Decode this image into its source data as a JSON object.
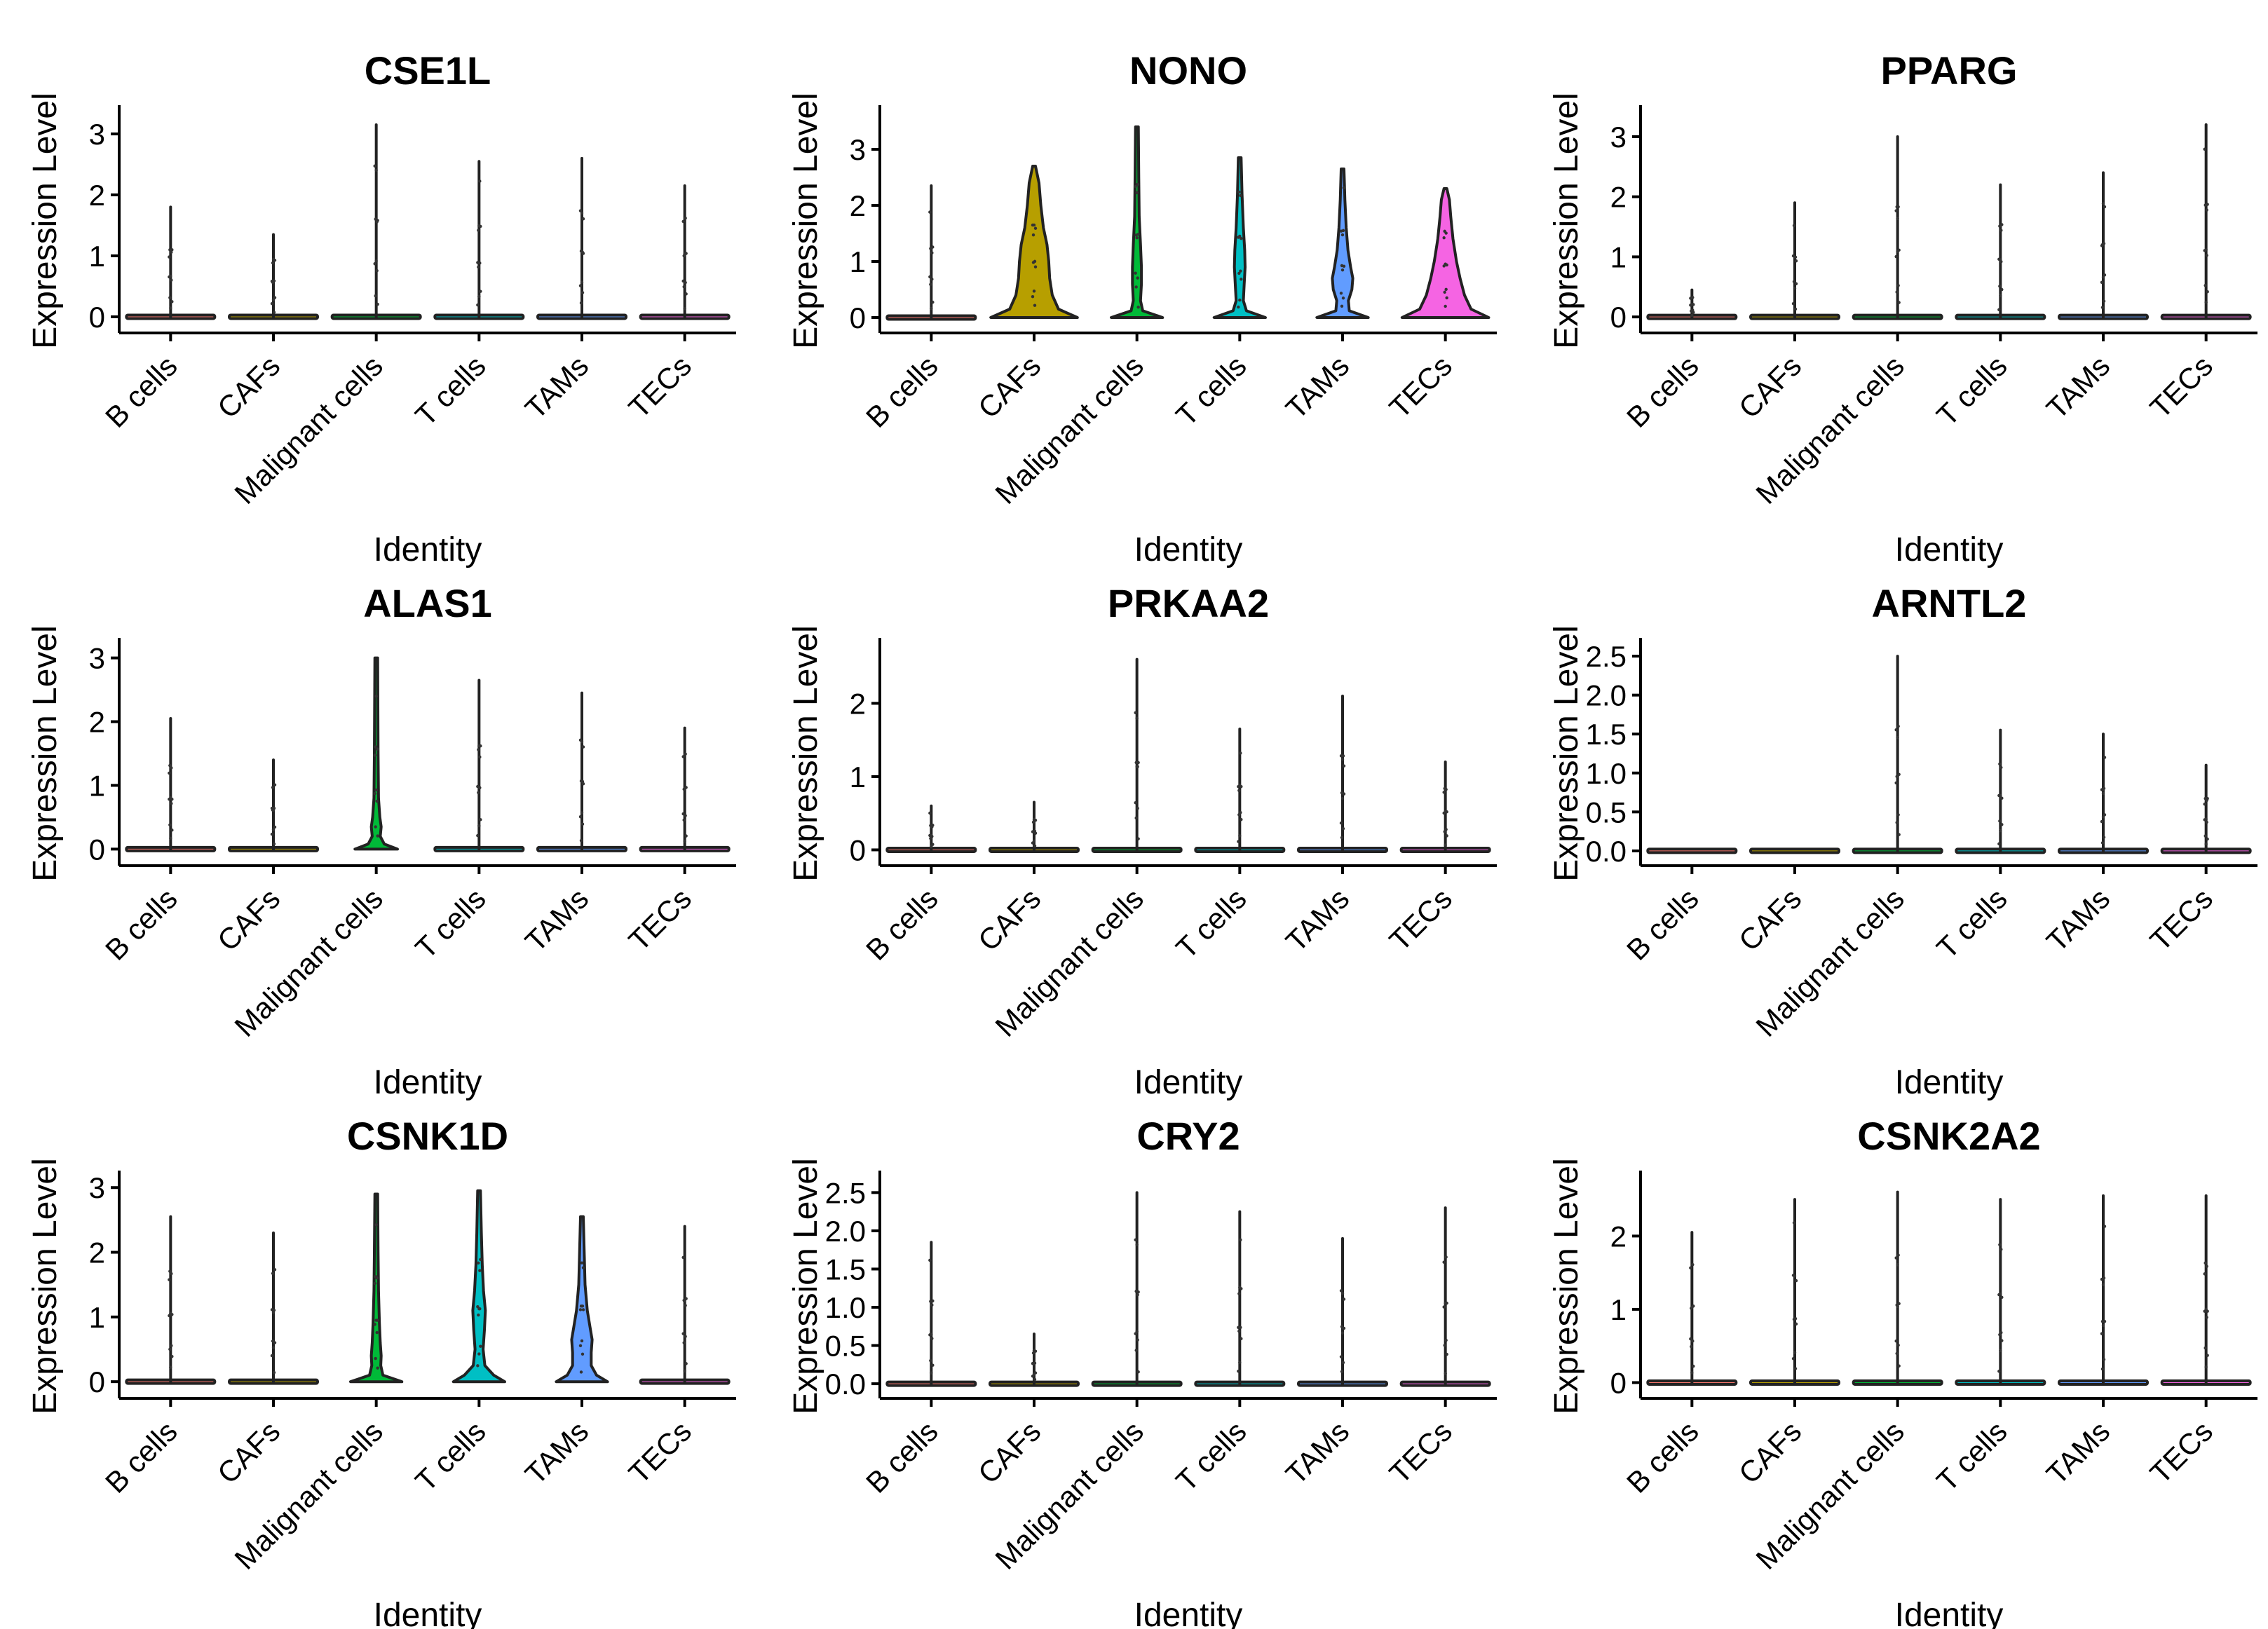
{
  "chart_data": {
    "type": "violin",
    "x_label": "Identity",
    "y_label": "Expression Level",
    "categories": [
      "B cells",
      "CAFs",
      "Malignant cells",
      "T cells",
      "TAMs",
      "TECs"
    ],
    "colors": {
      "B cells": "#F8766D",
      "CAFs": "#B79F00",
      "Malignant cells": "#00BA38",
      "T cells": "#00BFC4",
      "TAMs": "#619CFF",
      "TECs": "#F564E3"
    },
    "panels": [
      {
        "gene": "CSE1L",
        "ylim": [
          -0.15,
          3.3
        ],
        "yticks": [
          "0",
          "1",
          "2",
          "3"
        ],
        "max_values": [
          1.8,
          1.35,
          3.15,
          2.55,
          2.6,
          2.15
        ],
        "shapes": [
          [],
          [],
          [],
          [],
          [],
          []
        ]
      },
      {
        "gene": "NONO",
        "ylim": [
          -0.15,
          3.6
        ],
        "yticks": [
          "0",
          "1",
          "2",
          "3"
        ],
        "max_values": [
          2.35,
          2.7,
          3.4,
          2.85,
          2.65,
          2.3
        ],
        "shapes": [
          [],
          [
            [
              0,
              0.95
            ],
            [
              0.15,
              0.52
            ],
            [
              0.4,
              0.38
            ],
            [
              0.7,
              0.32
            ],
            [
              1.0,
              0.3
            ],
            [
              1.3,
              0.26
            ],
            [
              1.6,
              0.18
            ],
            [
              2.0,
              0.12
            ],
            [
              2.4,
              0.08
            ],
            [
              2.7,
              0
            ]
          ],
          [
            [
              0,
              0.55
            ],
            [
              0.12,
              0.1
            ],
            [
              0.3,
              0.05
            ],
            [
              0.6,
              0.07
            ],
            [
              0.9,
              0.07
            ],
            [
              1.3,
              0.05
            ],
            [
              1.8,
              0.02
            ],
            [
              2.5,
              0.01
            ],
            [
              3.4,
              0
            ]
          ],
          [
            [
              0,
              0.55
            ],
            [
              0.12,
              0.12
            ],
            [
              0.3,
              0.05
            ],
            [
              0.6,
              0.07
            ],
            [
              0.9,
              0.09
            ],
            [
              1.2,
              0.08
            ],
            [
              1.6,
              0.05
            ],
            [
              2.2,
              0.02
            ],
            [
              2.85,
              0
            ]
          ],
          [
            [
              0,
              0.55
            ],
            [
              0.12,
              0.12
            ],
            [
              0.3,
              0.1
            ],
            [
              0.5,
              0.18
            ],
            [
              0.7,
              0.2
            ],
            [
              0.9,
              0.15
            ],
            [
              1.2,
              0.09
            ],
            [
              1.6,
              0.05
            ],
            [
              2.1,
              0.02
            ],
            [
              2.65,
              0
            ]
          ],
          [
            [
              0,
              0.95
            ],
            [
              0.15,
              0.55
            ],
            [
              0.4,
              0.4
            ],
            [
              0.7,
              0.3
            ],
            [
              1.0,
              0.22
            ],
            [
              1.4,
              0.14
            ],
            [
              1.8,
              0.09
            ],
            [
              2.1,
              0.06
            ],
            [
              2.3,
              0
            ]
          ]
        ]
      },
      {
        "gene": "PPARG",
        "ylim": [
          -0.15,
          3.35
        ],
        "yticks": [
          "0",
          "1",
          "2",
          "3"
        ],
        "max_values": [
          0.45,
          1.9,
          3.0,
          2.2,
          2.4,
          3.2
        ],
        "shapes": [
          [],
          [],
          [],
          [],
          [],
          []
        ]
      },
      {
        "gene": "ALAS1",
        "ylim": [
          -0.15,
          3.15
        ],
        "yticks": [
          "0",
          "1",
          "2",
          "3"
        ],
        "max_values": [
          2.05,
          1.4,
          3.0,
          2.65,
          2.45,
          1.9
        ],
        "shapes": [
          [],
          [],
          [
            [
              0,
              0.45
            ],
            [
              0.08,
              0.15
            ],
            [
              0.2,
              0.06
            ],
            [
              0.35,
              0.08
            ],
            [
              0.5,
              0.05
            ],
            [
              0.8,
              0.02
            ],
            [
              1.5,
              0.01
            ],
            [
              3.0,
              0
            ]
          ],
          [],
          [],
          []
        ]
      },
      {
        "gene": "PRKAA2",
        "ylim": [
          -0.12,
          2.75
        ],
        "yticks": [
          "0",
          "1",
          "2"
        ],
        "max_values": [
          0.6,
          0.65,
          2.6,
          1.65,
          2.1,
          1.2
        ],
        "shapes": [
          [],
          [],
          [],
          [],
          [],
          []
        ]
      },
      {
        "gene": "ARNTL2",
        "ylim": [
          -0.1,
          2.6
        ],
        "yticks": [
          "0.0",
          "0.5",
          "1.0",
          "1.5",
          "2.0",
          "2.5"
        ],
        "max_values": [
          0,
          0,
          2.5,
          1.55,
          1.5,
          1.1
        ],
        "shapes": [
          [],
          [],
          [],
          [],
          [],
          []
        ]
      },
      {
        "gene": "CSNK1D",
        "ylim": [
          -0.15,
          3.1
        ],
        "yticks": [
          "0",
          "1",
          "2",
          "3"
        ],
        "max_values": [
          2.55,
          2.3,
          2.9,
          2.95,
          2.55,
          2.4
        ],
        "shapes": [
          [],
          [],
          [
            [
              0,
              0.55
            ],
            [
              0.1,
              0.12
            ],
            [
              0.25,
              0.07
            ],
            [
              0.4,
              0.08
            ],
            [
              0.6,
              0.06
            ],
            [
              0.9,
              0.04
            ],
            [
              1.4,
              0.02
            ],
            [
              2.0,
              0.01
            ],
            [
              2.9,
              0
            ]
          ],
          [
            [
              0,
              0.55
            ],
            [
              0.1,
              0.3
            ],
            [
              0.25,
              0.1
            ],
            [
              0.5,
              0.06
            ],
            [
              0.8,
              0.09
            ],
            [
              1.1,
              0.11
            ],
            [
              1.4,
              0.07
            ],
            [
              1.8,
              0.04
            ],
            [
              2.3,
              0.02
            ],
            [
              2.95,
              0
            ]
          ],
          [
            [
              0,
              0.55
            ],
            [
              0.1,
              0.3
            ],
            [
              0.25,
              0.18
            ],
            [
              0.45,
              0.18
            ],
            [
              0.65,
              0.2
            ],
            [
              0.85,
              0.15
            ],
            [
              1.1,
              0.09
            ],
            [
              1.5,
              0.04
            ],
            [
              2.0,
              0.02
            ],
            [
              2.55,
              0
            ]
          ],
          []
        ]
      },
      {
        "gene": "CRY2",
        "ylim": [
          -0.1,
          2.65
        ],
        "yticks": [
          "0.0",
          "0.5",
          "1.0",
          "1.5",
          "2.0",
          "2.5"
        ],
        "max_values": [
          1.85,
          0.65,
          2.5,
          2.25,
          1.9,
          2.3
        ],
        "shapes": [
          [],
          [],
          [],
          [],
          [],
          []
        ]
      },
      {
        "gene": "CSNK2A2",
        "ylim": [
          -0.12,
          2.75
        ],
        "yticks": [
          "0",
          "1",
          "2"
        ],
        "max_values": [
          2.05,
          2.5,
          2.6,
          2.5,
          2.55,
          2.55
        ],
        "shapes": [
          [],
          [],
          [],
          [],
          [],
          []
        ]
      }
    ]
  }
}
